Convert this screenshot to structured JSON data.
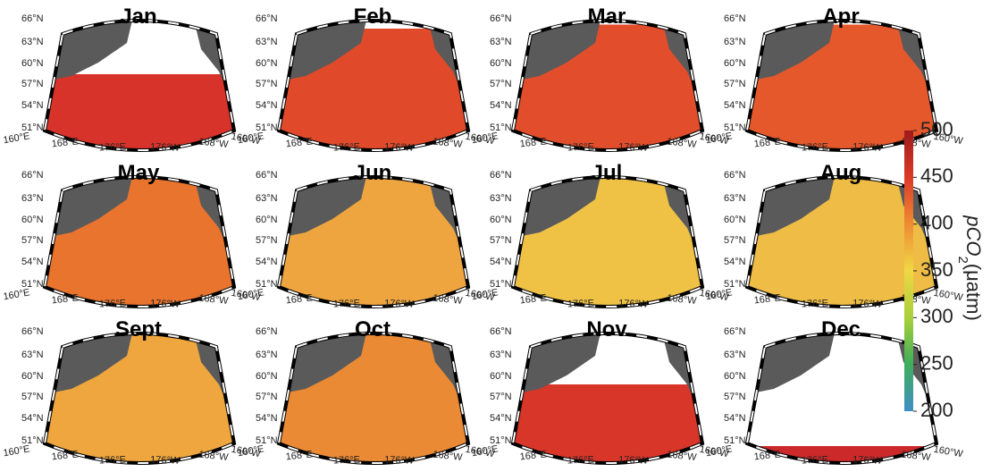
{
  "panels": [
    {
      "title": "Jan",
      "color": "#d8332a"
    },
    {
      "title": "Feb",
      "color": "#e04a2a"
    },
    {
      "title": "Mar",
      "color": "#e24d2b"
    },
    {
      "title": "Apr",
      "color": "#e5582c"
    },
    {
      "title": "May",
      "color": "#e8742e"
    },
    {
      "title": "Jun",
      "color": "#eea540"
    },
    {
      "title": "Jul",
      "color": "#efc246"
    },
    {
      "title": "Aug",
      "color": "#efbd45"
    },
    {
      "title": "Sept",
      "color": "#efa63e"
    },
    {
      "title": "Oct",
      "color": "#ea8a35"
    },
    {
      "title": "Nov",
      "color": "#d9362a"
    },
    {
      "title": "Dec",
      "color": "#cc2a2a"
    }
  ],
  "lat_labels": [
    "66°N",
    "63°N",
    "60°N",
    "57°N",
    "54°N",
    "51°N"
  ],
  "lon_labels": [
    "160°E",
    "168°E",
    "176°E",
    "176°W",
    "168°W",
    "160°W"
  ],
  "colorbar": {
    "label_main": "pCO",
    "label_sub": "2",
    "label_unit": "(μatm)",
    "range": [
      200,
      500
    ],
    "ticks": [
      200,
      250,
      300,
      350,
      400,
      450,
      500
    ]
  }
}
